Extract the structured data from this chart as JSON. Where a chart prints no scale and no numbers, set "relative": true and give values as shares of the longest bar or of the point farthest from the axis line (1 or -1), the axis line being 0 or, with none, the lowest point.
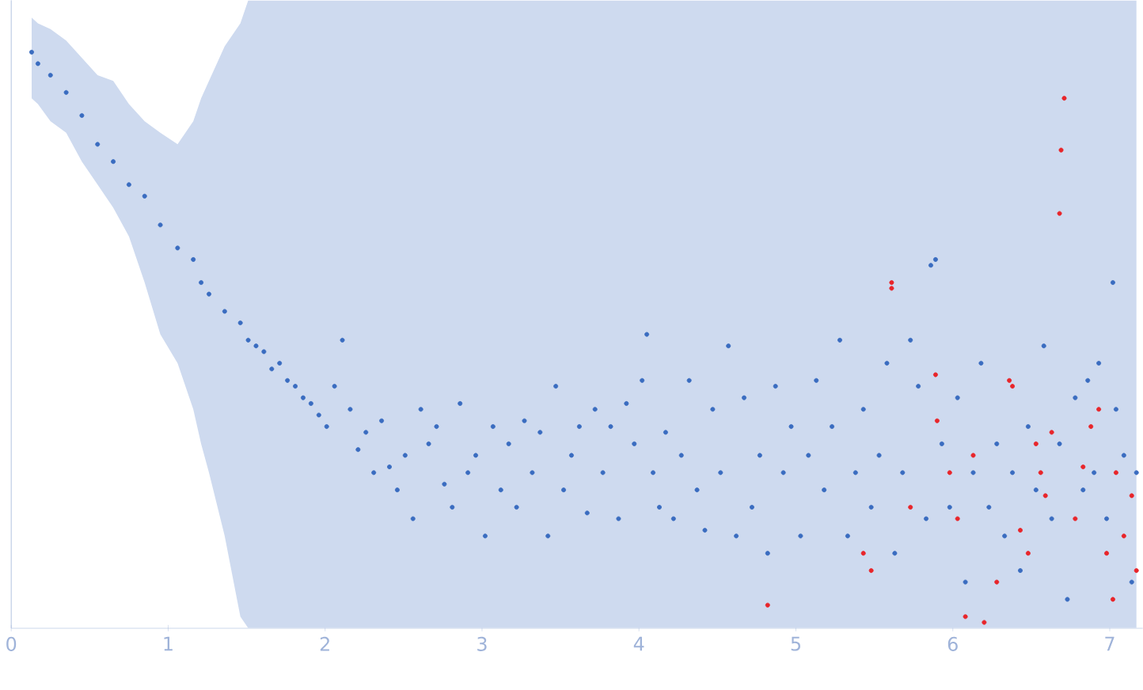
{
  "chart_data": {
    "type": "scatter",
    "relative": true,
    "marker": "circle",
    "xlim": [
      0,
      7.21
    ],
    "xticks": [
      0,
      1,
      2,
      3,
      4,
      5,
      6,
      7
    ],
    "series": [
      {
        "color": "#3a6cc0",
        "x": [
          0.13,
          0.17,
          0.25,
          0.35,
          0.45,
          0.55,
          0.65,
          0.75,
          0.85,
          0.95,
          1.06,
          1.16,
          1.21,
          1.26,
          1.36,
          1.46,
          1.51,
          1.56,
          1.61,
          1.66,
          1.71,
          1.76,
          1.81,
          1.86,
          1.91,
          1.96,
          2.01,
          2.06,
          2.11,
          2.16,
          2.21,
          2.26,
          2.31,
          2.36,
          2.41,
          2.46,
          2.51,
          2.56,
          2.61,
          2.66,
          2.71,
          2.76,
          2.81,
          2.86,
          2.91,
          2.96,
          3.02,
          3.07,
          3.12,
          3.17,
          3.22,
          3.27,
          3.32,
          3.37,
          3.42,
          3.47,
          3.52,
          3.57,
          3.62,
          3.67,
          3.72,
          3.77,
          3.82,
          3.87,
          3.92,
          3.97,
          4.02,
          4.05,
          4.09,
          4.13,
          4.17,
          4.22,
          4.27,
          4.32,
          4.37,
          4.42,
          4.47,
          4.52,
          4.57,
          4.62,
          4.67,
          4.72,
          4.77,
          4.82,
          4.87,
          4.92,
          4.97,
          5.03,
          5.08,
          5.13,
          5.18,
          5.23,
          5.28,
          5.33,
          5.38,
          5.43,
          5.48,
          5.53,
          5.58,
          5.63,
          5.68,
          5.73,
          5.78,
          5.83,
          5.86,
          5.89,
          5.93,
          5.98,
          6.03,
          6.08,
          6.13,
          6.18,
          6.23,
          6.28,
          6.33,
          6.38,
          6.43,
          6.48,
          6.53,
          6.58,
          6.63,
          6.68,
          6.73,
          6.78,
          6.83,
          6.86,
          6.9,
          6.93,
          6.98,
          7.02,
          7.04,
          7.09,
          7.14,
          7.17
        ],
        "values": [
          1.0,
          0.98,
          0.96,
          0.93,
          0.89,
          0.84,
          0.81,
          0.77,
          0.75,
          0.7,
          0.66,
          0.64,
          0.6,
          0.58,
          0.55,
          0.53,
          0.5,
          0.49,
          0.48,
          0.45,
          0.46,
          0.43,
          0.42,
          0.4,
          0.39,
          0.37,
          0.35,
          0.42,
          0.5,
          0.38,
          0.31,
          0.34,
          0.27,
          0.36,
          0.28,
          0.24,
          0.3,
          0.19,
          0.38,
          0.32,
          0.35,
          0.25,
          0.21,
          0.39,
          0.27,
          0.3,
          0.16,
          0.35,
          0.24,
          0.32,
          0.21,
          0.36,
          0.27,
          0.34,
          0.16,
          0.42,
          0.24,
          0.3,
          0.35,
          0.2,
          0.38,
          0.27,
          0.35,
          0.19,
          0.39,
          0.32,
          0.43,
          0.51,
          0.27,
          0.21,
          0.34,
          0.19,
          0.3,
          0.43,
          0.24,
          0.17,
          0.38,
          0.27,
          0.49,
          0.16,
          0.4,
          0.21,
          0.3,
          0.13,
          0.42,
          0.27,
          0.35,
          0.16,
          0.3,
          0.43,
          0.24,
          0.35,
          0.5,
          0.16,
          0.27,
          0.38,
          0.21,
          0.3,
          0.46,
          0.13,
          0.27,
          0.5,
          0.42,
          0.19,
          0.63,
          0.64,
          0.32,
          0.21,
          0.4,
          0.08,
          0.27,
          0.46,
          0.21,
          0.32,
          0.16,
          0.27,
          0.1,
          0.35,
          0.24,
          0.49,
          0.19,
          0.32,
          0.05,
          0.4,
          0.24,
          0.43,
          0.27,
          0.46,
          0.19,
          0.6,
          0.38,
          0.3,
          0.08,
          0.27
        ],
        "lower": [
          0.92,
          0.91,
          0.88,
          0.86,
          0.81,
          0.77,
          0.73,
          0.68,
          0.6,
          0.51,
          0.46,
          0.38,
          0.32,
          0.27,
          0.16,
          0.02,
          0,
          0,
          0,
          0,
          0,
          0,
          0,
          0,
          0,
          0,
          0,
          0,
          0,
          0,
          0,
          0,
          0,
          0,
          0,
          0,
          0,
          0,
          0,
          0,
          0,
          0,
          0,
          0,
          0,
          0,
          0,
          0,
          0,
          0,
          0,
          0,
          0,
          0,
          0,
          0,
          0,
          0,
          0,
          0,
          0,
          0,
          0,
          0,
          0,
          0,
          0,
          0,
          0,
          0,
          0,
          0,
          0,
          0,
          0,
          0,
          0,
          0,
          0,
          0,
          0,
          0,
          0,
          0,
          0,
          0,
          0,
          0,
          0,
          0,
          0,
          0,
          0,
          0,
          0,
          0,
          0,
          0,
          0,
          0,
          0,
          0,
          0,
          0,
          0,
          0,
          0,
          0,
          0,
          0,
          0,
          0,
          0,
          0,
          0,
          0,
          0,
          0,
          0,
          0,
          0,
          0,
          0,
          0,
          0,
          0,
          0,
          0,
          0,
          0,
          0,
          0,
          0,
          0
        ],
        "upper": [
          1.06,
          1.05,
          1.04,
          1.02,
          0.99,
          0.96,
          0.95,
          0.91,
          0.88,
          0.86,
          0.84,
          0.88,
          0.92,
          0.95,
          1.01,
          1.05,
          1.09,
          1.09,
          1.09,
          1.09,
          1.09,
          1.09,
          1.09,
          1.09,
          1.09,
          1.09,
          1.09,
          1.09,
          1.09,
          1.09,
          1.09,
          1.09,
          1.09,
          1.09,
          1.09,
          1.09,
          1.09,
          1.09,
          1.09,
          1.09,
          1.09,
          1.09,
          1.09,
          1.09,
          1.09,
          1.09,
          1.09,
          1.09,
          1.09,
          1.09,
          1.09,
          1.09,
          1.09,
          1.09,
          1.09,
          1.09,
          1.09,
          1.09,
          1.09,
          1.09,
          1.09,
          1.09,
          1.09,
          1.09,
          1.09,
          1.09,
          1.09,
          1.09,
          1.09,
          1.09,
          1.09,
          1.09,
          1.09,
          1.09,
          1.09,
          1.09,
          1.09,
          1.09,
          1.09,
          1.09,
          1.09,
          1.09,
          1.09,
          1.09,
          1.09,
          1.09,
          1.09,
          1.09,
          1.09,
          1.09,
          1.09,
          1.09,
          1.09,
          1.09,
          1.09,
          1.09,
          1.09,
          1.09,
          1.09,
          1.09,
          1.09,
          1.09,
          1.09,
          1.09,
          1.09,
          1.09,
          1.09,
          1.09,
          1.09,
          1.09,
          1.09,
          1.09,
          1.09,
          1.09,
          1.09,
          1.09,
          1.09,
          1.09,
          1.09,
          1.09,
          1.09,
          1.09,
          1.09,
          1.09,
          1.09,
          1.09,
          1.09,
          1.09,
          1.09,
          1.09,
          1.09,
          1.09,
          1.09,
          1.09
        ]
      },
      {
        "color": "#e8252a",
        "x": [
          4.82,
          5.43,
          5.48,
          5.61,
          5.61,
          5.73,
          5.89,
          5.9,
          5.98,
          6.03,
          6.08,
          6.13,
          6.2,
          6.28,
          6.36,
          6.38,
          6.43,
          6.48,
          6.53,
          6.56,
          6.59,
          6.63,
          6.69,
          6.68,
          6.71,
          6.78,
          6.83,
          6.88,
          6.93,
          6.98,
          7.02,
          7.04,
          7.09,
          7.14,
          7.17
        ],
        "values": [
          0.04,
          0.13,
          0.1,
          0.6,
          0.59,
          0.21,
          0.44,
          0.36,
          0.27,
          0.19,
          0.02,
          0.3,
          0.01,
          0.08,
          0.43,
          0.42,
          0.17,
          0.13,
          0.32,
          0.27,
          0.23,
          0.34,
          0.83,
          0.72,
          0.92,
          0.19,
          0.28,
          0.35,
          0.38,
          0.13,
          0.05,
          0.27,
          0.16,
          0.23,
          0.1
        ]
      }
    ]
  }
}
